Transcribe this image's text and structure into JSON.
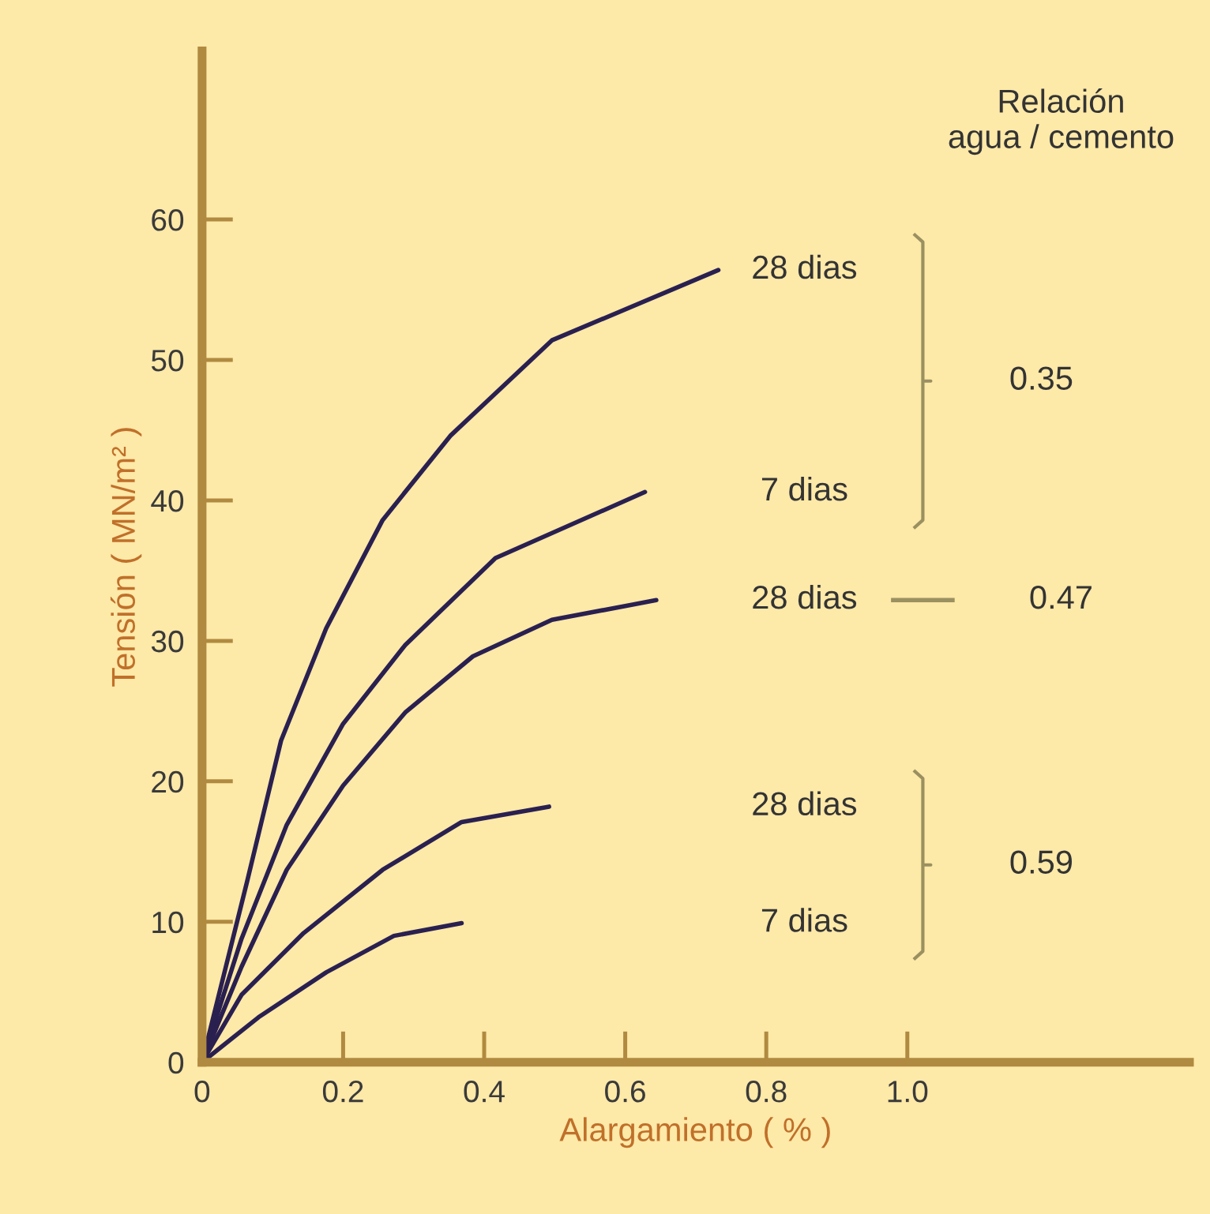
{
  "chart_data": {
    "type": "line",
    "xlabel": "Alargamiento ( % )",
    "ylabel": "Tensión ( MN/m² )",
    "xlim": [
      0,
      1.4
    ],
    "ylim": [
      0,
      72
    ],
    "xticks": [
      0,
      0.2,
      0.4,
      0.6,
      0.8,
      {
        "value": 1.0,
        "label": "1.0"
      }
    ],
    "yticks": [
      0,
      10,
      20,
      30,
      40,
      50,
      60
    ],
    "grid": false,
    "legend": false,
    "marker": "none",
    "line_style": "solid",
    "series": [
      {
        "name": "28 dias",
        "color": "#2a2050",
        "x": [
          0,
          0.064,
          0.112,
          0.176,
          0.256,
          0.352,
          0.496,
          0.732
        ],
        "values": [
          0,
          12.9,
          22.9,
          30.9,
          38.6,
          44.6,
          51.4,
          56.4
        ]
      },
      {
        "name": "7 dias",
        "color": "#2a2050",
        "x": [
          0,
          0.056,
          0.12,
          0.2,
          0.288,
          0.416,
          0.628
        ],
        "values": [
          0,
          8.8,
          16.9,
          24.1,
          29.7,
          35.9,
          40.6
        ]
      },
      {
        "name": "28 dias",
        "color": "#2a2050",
        "x": [
          0,
          0.056,
          0.12,
          0.2,
          0.288,
          0.384,
          0.496,
          0.644
        ],
        "values": [
          0,
          6.8,
          13.7,
          19.7,
          24.9,
          28.9,
          31.5,
          32.9
        ]
      },
      {
        "name": "28 dias",
        "color": "#2a2050",
        "x": [
          0,
          0.056,
          0.144,
          0.256,
          0.368,
          0.492
        ],
        "values": [
          0,
          4.8,
          9.2,
          13.7,
          17.1,
          18.2
        ]
      },
      {
        "name": "7 dias",
        "color": "#2a2050",
        "x": [
          0,
          0.08,
          0.176,
          0.272,
          0.368
        ],
        "values": [
          0,
          3.2,
          6.4,
          9.0,
          9.9
        ]
      }
    ],
    "annotations": [
      "0.35",
      "0.47",
      "0.59",
      "Relación\nagua / cemento"
    ]
  }
}
